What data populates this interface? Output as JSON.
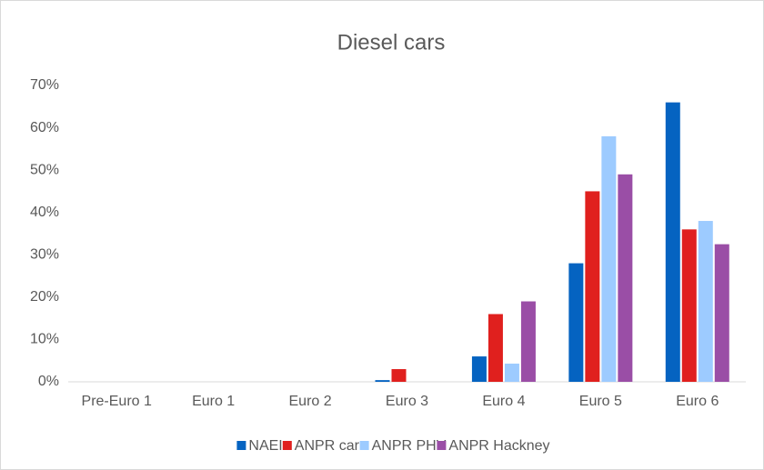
{
  "chart_data": {
    "type": "bar",
    "title": "Diesel cars",
    "categories": [
      "Pre-Euro 1",
      "Euro 1",
      "Euro 2",
      "Euro 3",
      "Euro 4",
      "Euro 5",
      "Euro 6"
    ],
    "series": [
      {
        "name": "NAEI",
        "color": "#0563c1",
        "values": [
          0,
          0,
          0,
          0.4,
          6,
          28,
          66
        ]
      },
      {
        "name": "ANPR car",
        "color": "#e0201e",
        "values": [
          0,
          0,
          0,
          3,
          16,
          45,
          36
        ]
      },
      {
        "name": "ANPR PHV",
        "color": "#9dcbff",
        "values": [
          0,
          0,
          0,
          0,
          4.3,
          58,
          38
        ]
      },
      {
        "name": "ANPR Hackney",
        "color": "#9a4ea6",
        "values": [
          0,
          0,
          0,
          0,
          19,
          49,
          32.5
        ]
      }
    ],
    "ylim": [
      0,
      70
    ],
    "yticks": [
      {
        "value": 0,
        "label": "0%"
      },
      {
        "value": 10,
        "label": "10%"
      },
      {
        "value": 20,
        "label": "20%"
      },
      {
        "value": 30,
        "label": "30%"
      },
      {
        "value": 40,
        "label": "40%"
      },
      {
        "value": 50,
        "label": "50%"
      },
      {
        "value": 60,
        "label": "60%"
      },
      {
        "value": 70,
        "label": "70%"
      }
    ],
    "grid": false,
    "legend": "bottom"
  }
}
